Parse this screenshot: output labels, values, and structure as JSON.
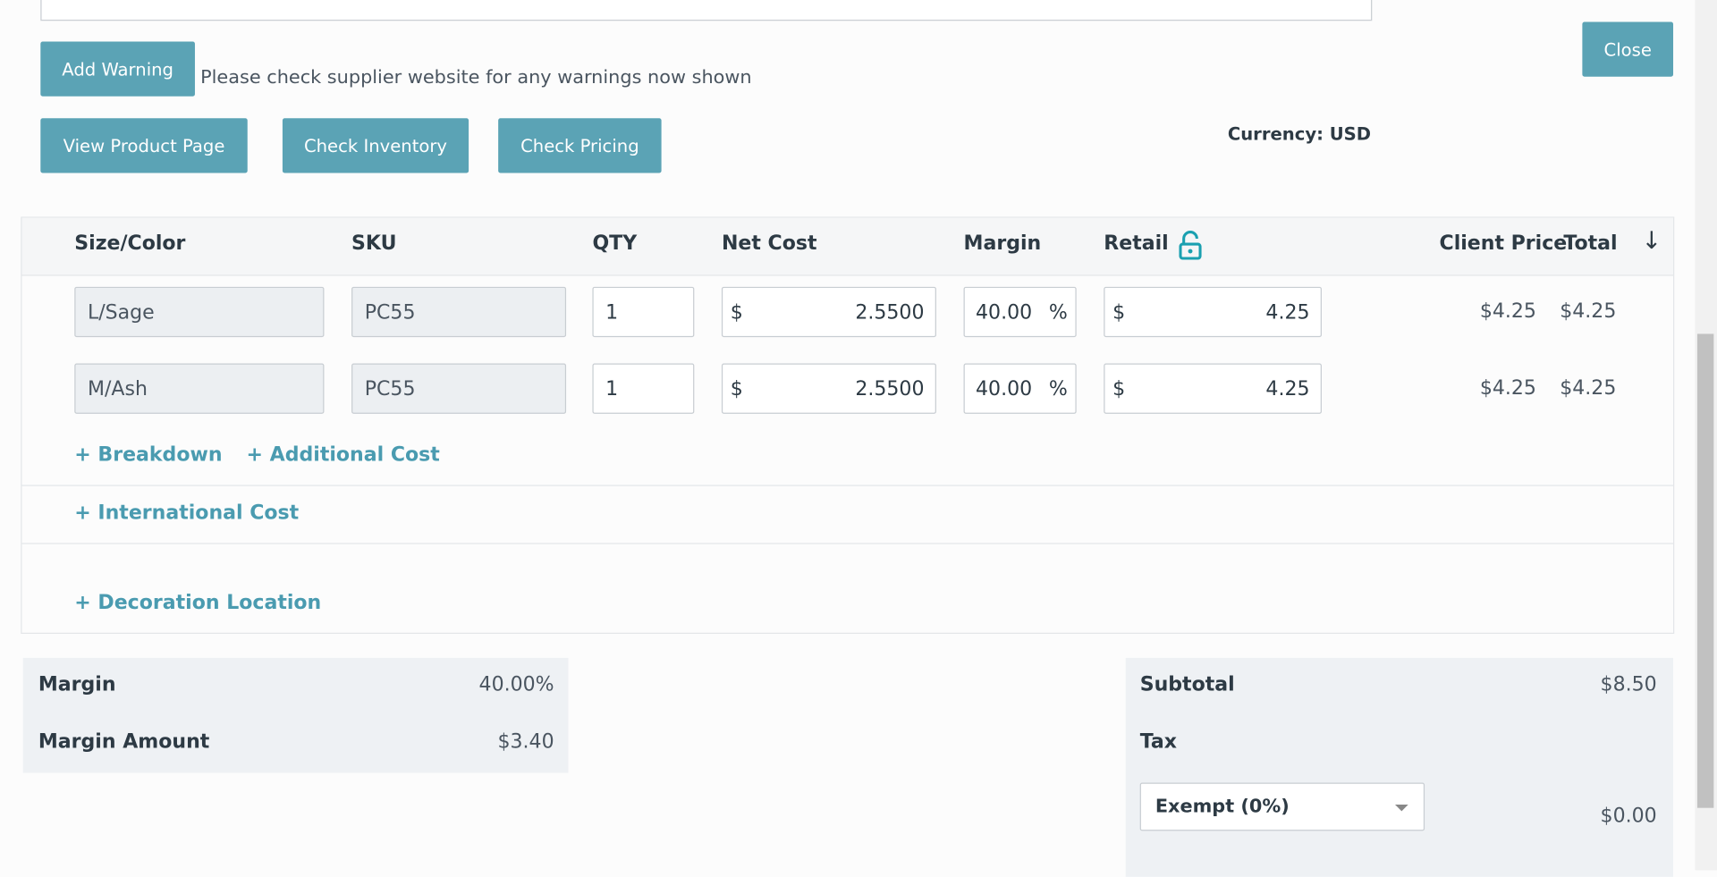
{
  "warning": {
    "button": "Add Warning",
    "text": "Please check supplier website for any warnings now shown"
  },
  "close": "Close",
  "buttons": [
    "View Product Page",
    "Check Inventory",
    "Check Pricing"
  ],
  "currency": "Currency: USD",
  "table": {
    "headers": [
      "Size/Color",
      "SKU",
      "QTY",
      "Net Cost",
      "Margin",
      "Retail",
      "Client Price",
      "Total"
    ],
    "rows": [
      {
        "size_color": "L/Sage",
        "sku": "PC55",
        "qty": "1",
        "net_cost_symbol": "$",
        "net_cost": "2.5500",
        "margin": "40.00",
        "margin_symbol": "%",
        "retail_symbol": "$",
        "retail": "4.25",
        "client_price": "$4.25",
        "total": "$4.25"
      },
      {
        "size_color": "M/Ash",
        "sku": "PC55",
        "qty": "1",
        "net_cost_symbol": "$",
        "net_cost": "2.5500",
        "margin": "40.00",
        "margin_symbol": "%",
        "retail_symbol": "$",
        "retail": "4.25",
        "client_price": "$4.25",
        "total": "$4.25"
      }
    ],
    "links": [
      "+ Breakdown",
      "+ Additional Cost"
    ]
  },
  "international": "+ International Cost",
  "decoration": "+ Decoration Location",
  "summary_left": [
    {
      "label": "Margin",
      "value": "40.00%"
    },
    {
      "label": "Margin Amount",
      "value": "$3.40"
    }
  ],
  "summary_right": {
    "subtotal_label": "Subtotal",
    "subtotal": "$8.50",
    "tax_label": "Tax",
    "tax_select": "Exempt (0%)",
    "tax": "$0.00"
  }
}
